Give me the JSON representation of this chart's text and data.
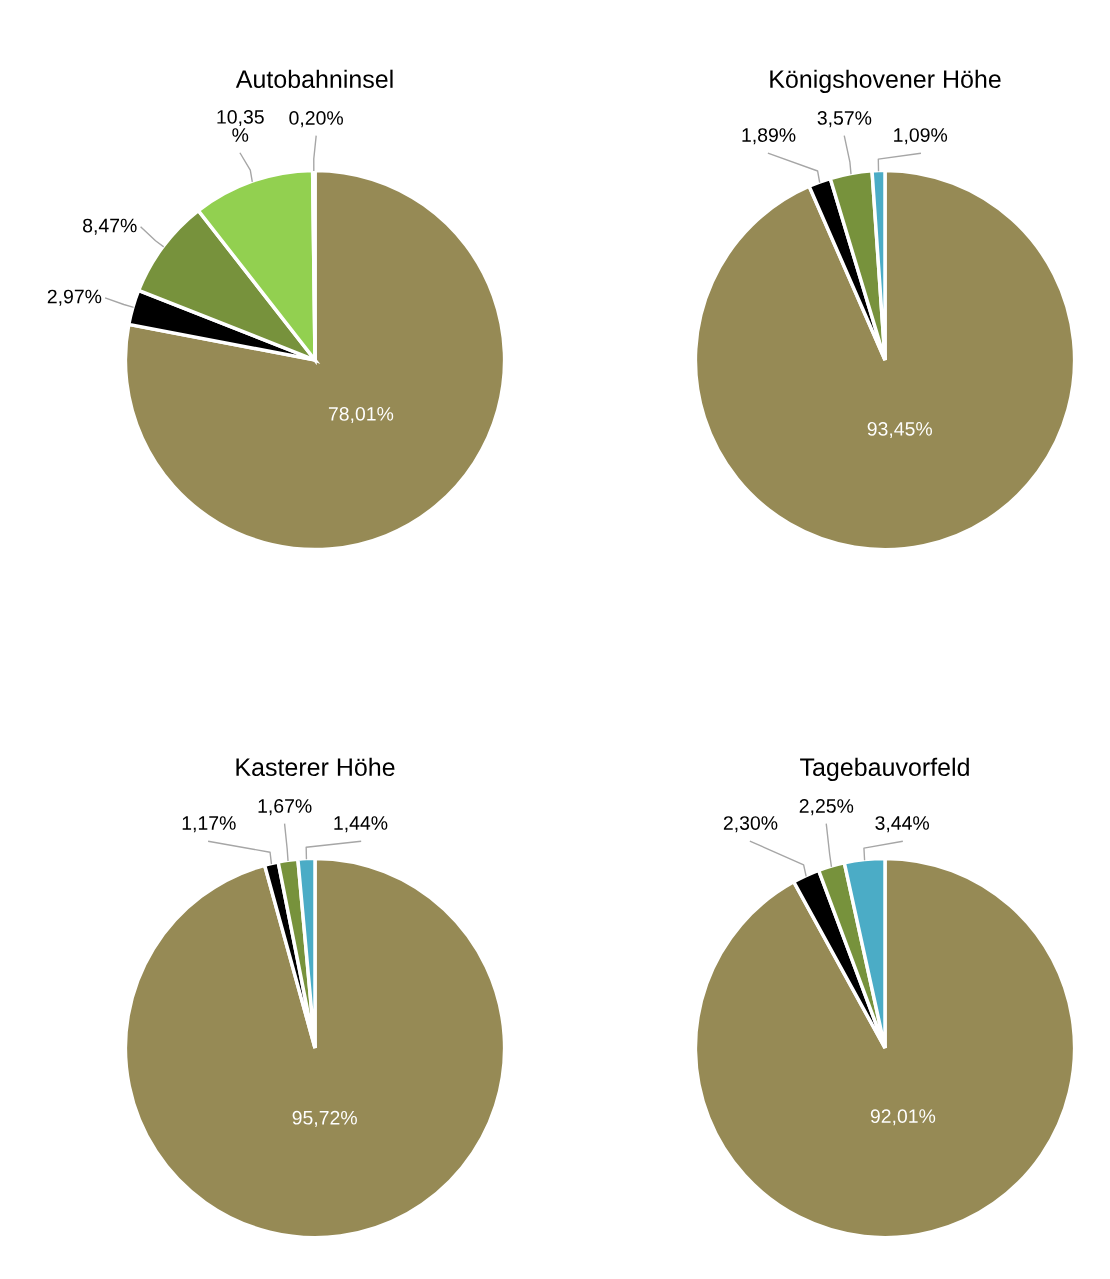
{
  "chart_data": [
    {
      "type": "pie",
      "title": "Autobahninsel",
      "categories": [
        null,
        null,
        null,
        null,
        null
      ],
      "values": [
        78.01,
        2.97,
        8.47,
        10.35,
        0.2
      ],
      "colors": [
        "#968a55",
        "#000000",
        "#77923c",
        "#92d050",
        "#4bacc6"
      ],
      "value_labels": [
        "78,01%",
        "2,97%",
        "8,47%",
        "10,35 %",
        "0,20%"
      ]
    },
    {
      "type": "pie",
      "title": "Königshovener Höhe",
      "categories": [
        null,
        null,
        null,
        null
      ],
      "values": [
        93.45,
        1.89,
        3.57,
        1.09
      ],
      "colors": [
        "#968a55",
        "#000000",
        "#77923c",
        "#4bacc6"
      ],
      "value_labels": [
        "93,45%",
        "1,89%",
        "3,57%",
        "1,09%"
      ]
    },
    {
      "type": "pie",
      "title": "Kasterer Höhe",
      "categories": [
        null,
        null,
        null,
        null
      ],
      "values": [
        95.72,
        1.17,
        1.67,
        1.44
      ],
      "colors": [
        "#968a55",
        "#000000",
        "#77923c",
        "#4bacc6"
      ],
      "value_labels": [
        "95,72%",
        "1,17%",
        "1,67%",
        "1,44%"
      ]
    },
    {
      "type": "pie",
      "title": "Tagebauvorfeld",
      "categories": [
        null,
        null,
        null,
        null
      ],
      "values": [
        92.01,
        2.3,
        2.25,
        3.44
      ],
      "colors": [
        "#968a55",
        "#000000",
        "#77923c",
        "#4bacc6"
      ],
      "value_labels": [
        "92,01%",
        "2,30%",
        "2,25%",
        "3,44%"
      ]
    }
  ]
}
